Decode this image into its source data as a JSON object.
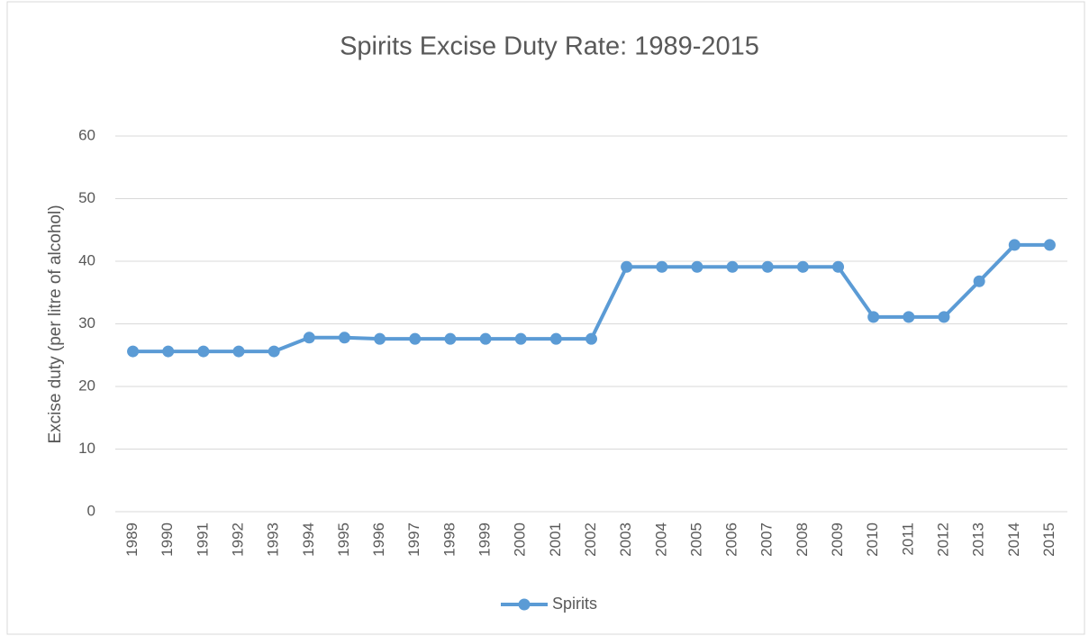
{
  "chart_data": {
    "type": "line",
    "title": "Spirits Excise Duty Rate: 1989-2015",
    "y_label": "Excise duty (per litre of alcohol)",
    "categories": [
      "1989",
      "1990",
      "1991",
      "1992",
      "1993",
      "1994",
      "1995",
      "1996",
      "1997",
      "1998",
      "1999",
      "2000",
      "2001",
      "2002",
      "2003",
      "2004",
      "2005",
      "2006",
      "2007",
      "2008",
      "2009",
      "2010",
      "2011",
      "2012",
      "2013",
      "2014",
      "2015"
    ],
    "series": [
      {
        "name": "Spirits",
        "color": "#5b9bd5",
        "values": [
          25.6,
          25.6,
          25.6,
          25.6,
          25.6,
          27.8,
          27.8,
          27.6,
          27.6,
          27.6,
          27.6,
          27.6,
          27.6,
          27.6,
          39.1,
          39.1,
          39.1,
          39.1,
          39.1,
          39.1,
          39.1,
          31.1,
          31.1,
          31.1,
          36.8,
          42.6,
          42.6
        ]
      }
    ],
    "ylim": [
      0,
      60
    ],
    "yticks": [
      0,
      10,
      20,
      30,
      40,
      50,
      60
    ],
    "grid": true,
    "legend": "bottom"
  }
}
